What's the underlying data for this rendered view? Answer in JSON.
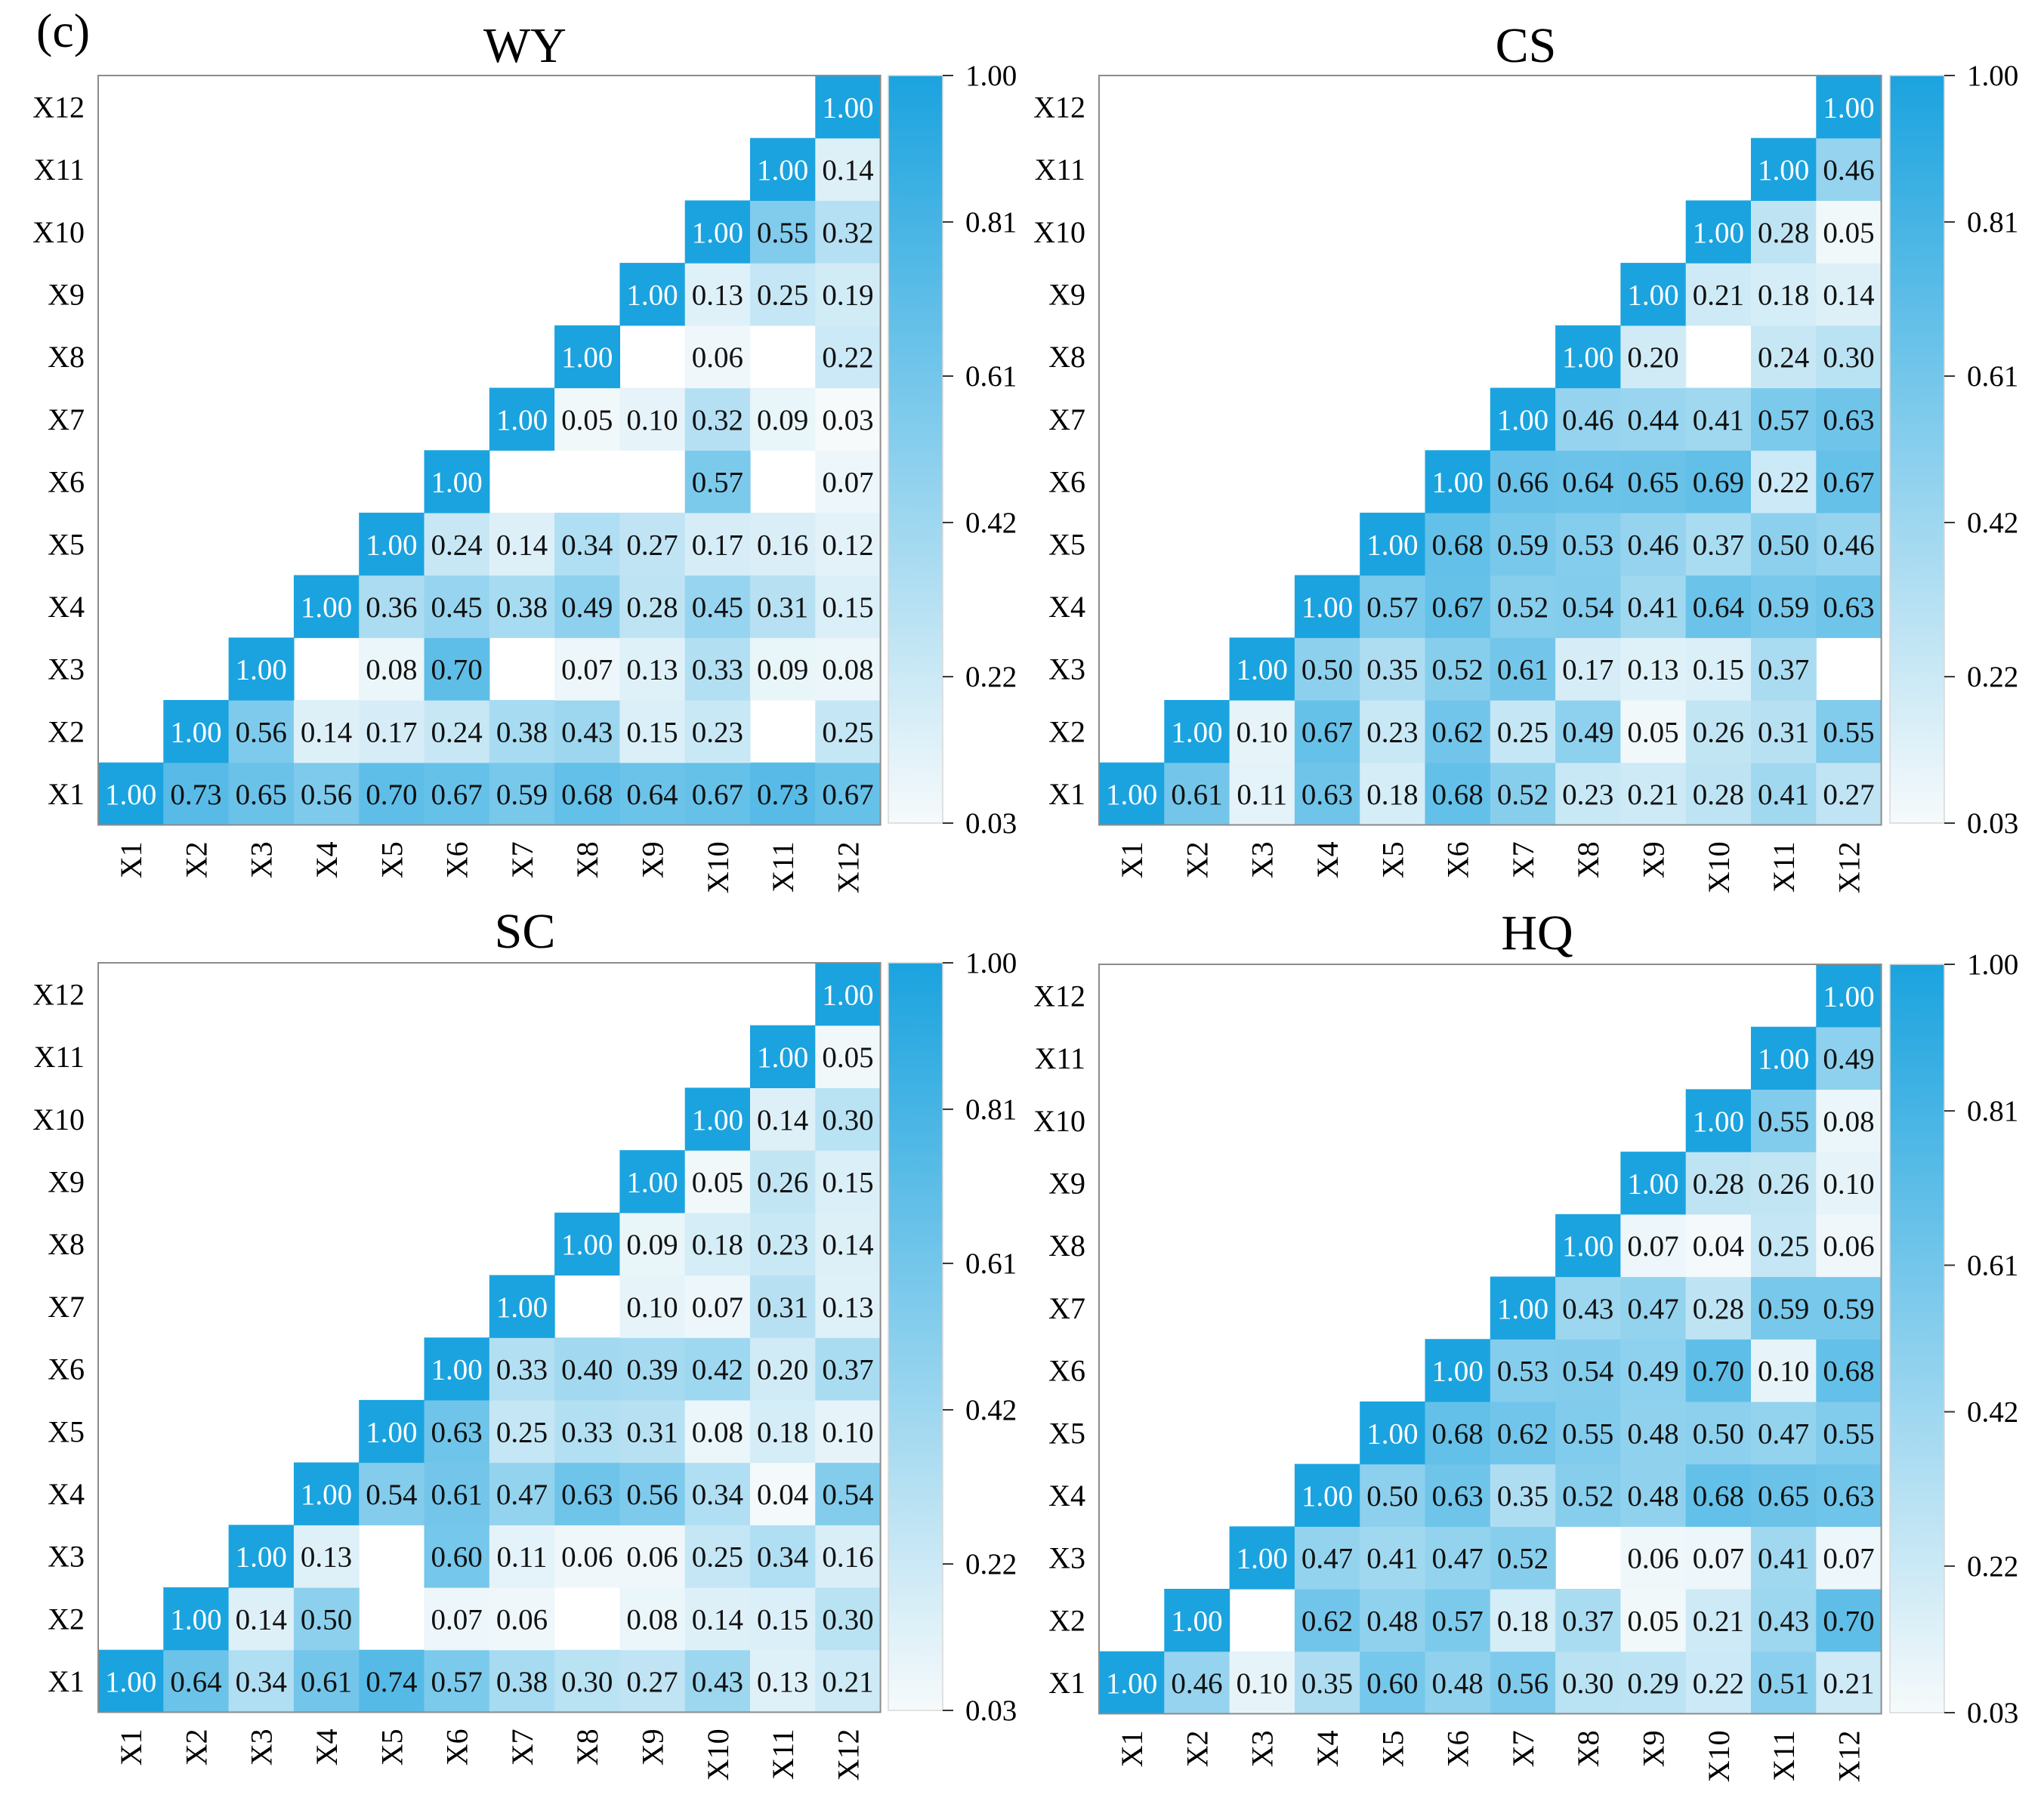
{
  "figure_label": "(c)",
  "colors": {
    "high": "#1ba3df",
    "low": "#f6fafb",
    "frame": "#8c8c8c",
    "text_dark": "#111111",
    "text_light": "#ffffff"
  },
  "colorbar": {
    "ticks": [
      "1.00",
      "0.81",
      "0.61",
      "0.42",
      "0.22",
      "0.03"
    ],
    "min": 0.03,
    "max": 1.0
  },
  "chart_data": [
    {
      "type": "heatmap",
      "title": "WY",
      "labels": [
        "X1",
        "X2",
        "X3",
        "X4",
        "X5",
        "X6",
        "X7",
        "X8",
        "X9",
        "X10",
        "X11",
        "X12"
      ],
      "matrix": [
        [
          "1.00",
          "0.73",
          "0.65",
          "0.56",
          "0.70",
          "0.67",
          "0.59",
          "0.68",
          "0.64",
          "0.67",
          "0.73",
          "0.67"
        ],
        [
          null,
          "1.00",
          "0.56",
          "0.14",
          "0.17",
          "0.24",
          "0.38",
          "0.43",
          "0.15",
          "0.23",
          "",
          "0.25"
        ],
        [
          null,
          null,
          "1.00",
          "",
          "0.08",
          "0.70",
          "",
          "0.07",
          "0.13",
          "0.33",
          "0.09",
          "0.08"
        ],
        [
          null,
          null,
          null,
          "1.00",
          "0.36",
          "0.45",
          "0.38",
          "0.49",
          "0.28",
          "0.45",
          "0.31",
          "0.15"
        ],
        [
          null,
          null,
          null,
          null,
          "1.00",
          "0.24",
          "0.14",
          "0.34",
          "0.27",
          "0.17",
          "0.16",
          "0.12"
        ],
        [
          null,
          null,
          null,
          null,
          null,
          "1.00",
          "",
          "",
          "",
          "0.57",
          "",
          "0.07"
        ],
        [
          null,
          null,
          null,
          null,
          null,
          null,
          "1.00",
          "0.05",
          "0.10",
          "0.32",
          "0.09",
          "0.03"
        ],
        [
          null,
          null,
          null,
          null,
          null,
          null,
          null,
          "1.00",
          "",
          "0.06",
          "",
          "0.22"
        ],
        [
          null,
          null,
          null,
          null,
          null,
          null,
          null,
          null,
          "1.00",
          "0.13",
          "0.25",
          "0.19"
        ],
        [
          null,
          null,
          null,
          null,
          null,
          null,
          null,
          null,
          null,
          "1.00",
          "0.55",
          "0.32"
        ],
        [
          null,
          null,
          null,
          null,
          null,
          null,
          null,
          null,
          null,
          null,
          "1.00",
          "0.14"
        ],
        [
          null,
          null,
          null,
          null,
          null,
          null,
          null,
          null,
          null,
          null,
          null,
          "1.00"
        ]
      ]
    },
    {
      "type": "heatmap",
      "title": "CS",
      "labels": [
        "X1",
        "X2",
        "X3",
        "X4",
        "X5",
        "X6",
        "X7",
        "X8",
        "X9",
        "X10",
        "X11",
        "X12"
      ],
      "matrix": [
        [
          "1.00",
          "0.61",
          "0.11",
          "0.63",
          "0.18",
          "0.68",
          "0.52",
          "0.23",
          "0.21",
          "0.28",
          "0.41",
          "0.27"
        ],
        [
          null,
          "1.00",
          "0.10",
          "0.67",
          "0.23",
          "0.62",
          "0.25",
          "0.49",
          "0.05",
          "0.26",
          "0.31",
          "0.55"
        ],
        [
          null,
          null,
          "1.00",
          "0.50",
          "0.35",
          "0.52",
          "0.61",
          "0.17",
          "0.13",
          "0.15",
          "0.37",
          ""
        ],
        [
          null,
          null,
          null,
          "1.00",
          "0.57",
          "0.67",
          "0.52",
          "0.54",
          "0.41",
          "0.64",
          "0.59",
          "0.63"
        ],
        [
          null,
          null,
          null,
          null,
          "1.00",
          "0.68",
          "0.59",
          "0.53",
          "0.46",
          "0.37",
          "0.50",
          "0.46"
        ],
        [
          null,
          null,
          null,
          null,
          null,
          "1.00",
          "0.66",
          "0.64",
          "0.65",
          "0.69",
          "0.22",
          "0.67"
        ],
        [
          null,
          null,
          null,
          null,
          null,
          null,
          "1.00",
          "0.46",
          "0.44",
          "0.41",
          "0.57",
          "0.63"
        ],
        [
          null,
          null,
          null,
          null,
          null,
          null,
          null,
          "1.00",
          "0.20",
          "",
          "0.24",
          "0.30"
        ],
        [
          null,
          null,
          null,
          null,
          null,
          null,
          null,
          null,
          "1.00",
          "0.21",
          "0.18",
          "0.14"
        ],
        [
          null,
          null,
          null,
          null,
          null,
          null,
          null,
          null,
          null,
          "1.00",
          "0.28",
          "0.05"
        ],
        [
          null,
          null,
          null,
          null,
          null,
          null,
          null,
          null,
          null,
          null,
          "1.00",
          "0.46"
        ],
        [
          null,
          null,
          null,
          null,
          null,
          null,
          null,
          null,
          null,
          null,
          null,
          "1.00"
        ]
      ]
    },
    {
      "type": "heatmap",
      "title": "SC",
      "labels": [
        "X1",
        "X2",
        "X3",
        "X4",
        "X5",
        "X6",
        "X7",
        "X8",
        "X9",
        "X10",
        "X11",
        "X12"
      ],
      "matrix": [
        [
          "1.00",
          "0.64",
          "0.34",
          "0.61",
          "0.74",
          "0.57",
          "0.38",
          "0.30",
          "0.27",
          "0.43",
          "0.13",
          "0.21"
        ],
        [
          null,
          "1.00",
          "0.14",
          "0.50",
          "",
          "0.07",
          "0.06",
          "",
          "0.08",
          "0.14",
          "0.15",
          "0.30"
        ],
        [
          null,
          null,
          "1.00",
          "0.13",
          "",
          "0.60",
          "0.11",
          "0.06",
          "0.06",
          "0.25",
          "0.34",
          "0.16"
        ],
        [
          null,
          null,
          null,
          "1.00",
          "0.54",
          "0.61",
          "0.47",
          "0.63",
          "0.56",
          "0.34",
          "0.04",
          "0.54"
        ],
        [
          null,
          null,
          null,
          null,
          "1.00",
          "0.63",
          "0.25",
          "0.33",
          "0.31",
          "0.08",
          "0.18",
          "0.10"
        ],
        [
          null,
          null,
          null,
          null,
          null,
          "1.00",
          "0.33",
          "0.40",
          "0.39",
          "0.42",
          "0.20",
          "0.37"
        ],
        [
          null,
          null,
          null,
          null,
          null,
          null,
          "1.00",
          "",
          "0.10",
          "0.07",
          "0.31",
          "0.13"
        ],
        [
          null,
          null,
          null,
          null,
          null,
          null,
          null,
          "1.00",
          "0.09",
          "0.18",
          "0.23",
          "0.14"
        ],
        [
          null,
          null,
          null,
          null,
          null,
          null,
          null,
          null,
          "1.00",
          "0.05",
          "0.26",
          "0.15"
        ],
        [
          null,
          null,
          null,
          null,
          null,
          null,
          null,
          null,
          null,
          "1.00",
          "0.14",
          "0.30"
        ],
        [
          null,
          null,
          null,
          null,
          null,
          null,
          null,
          null,
          null,
          null,
          "1.00",
          "0.05"
        ],
        [
          null,
          null,
          null,
          null,
          null,
          null,
          null,
          null,
          null,
          null,
          null,
          "1.00"
        ]
      ]
    },
    {
      "type": "heatmap",
      "title": "HQ",
      "labels": [
        "X1",
        "X2",
        "X3",
        "X4",
        "X5",
        "X6",
        "X7",
        "X8",
        "X9",
        "X10",
        "X11",
        "X12"
      ],
      "matrix": [
        [
          "1.00",
          "0.46",
          "0.10",
          "0.35",
          "0.60",
          "0.48",
          "0.56",
          "0.30",
          "0.29",
          "0.22",
          "0.51",
          "0.21"
        ],
        [
          null,
          "1.00",
          "",
          "0.62",
          "0.48",
          "0.57",
          "0.18",
          "0.37",
          "0.05",
          "0.21",
          "0.43",
          "0.70"
        ],
        [
          null,
          null,
          "1.00",
          "0.47",
          "0.41",
          "0.47",
          "0.52",
          "",
          "0.06",
          "0.07",
          "0.41",
          "0.07"
        ],
        [
          null,
          null,
          null,
          "1.00",
          "0.50",
          "0.63",
          "0.35",
          "0.52",
          "0.48",
          "0.68",
          "0.65",
          "0.63"
        ],
        [
          null,
          null,
          null,
          null,
          "1.00",
          "0.68",
          "0.62",
          "0.55",
          "0.48",
          "0.50",
          "0.47",
          "0.55"
        ],
        [
          null,
          null,
          null,
          null,
          null,
          "1.00",
          "0.53",
          "0.54",
          "0.49",
          "0.70",
          "0.10",
          "0.68"
        ],
        [
          null,
          null,
          null,
          null,
          null,
          null,
          "1.00",
          "0.43",
          "0.47",
          "0.28",
          "0.59",
          "0.59"
        ],
        [
          null,
          null,
          null,
          null,
          null,
          null,
          null,
          "1.00",
          "0.07",
          "0.04",
          "0.25",
          "0.06"
        ],
        [
          null,
          null,
          null,
          null,
          null,
          null,
          null,
          null,
          "1.00",
          "0.28",
          "0.26",
          "0.10"
        ],
        [
          null,
          null,
          null,
          null,
          null,
          null,
          null,
          null,
          null,
          "1.00",
          "0.55",
          "0.08"
        ],
        [
          null,
          null,
          null,
          null,
          null,
          null,
          null,
          null,
          null,
          null,
          "1.00",
          "0.49"
        ],
        [
          null,
          null,
          null,
          null,
          null,
          null,
          null,
          null,
          null,
          null,
          null,
          "1.00"
        ]
      ]
    }
  ]
}
